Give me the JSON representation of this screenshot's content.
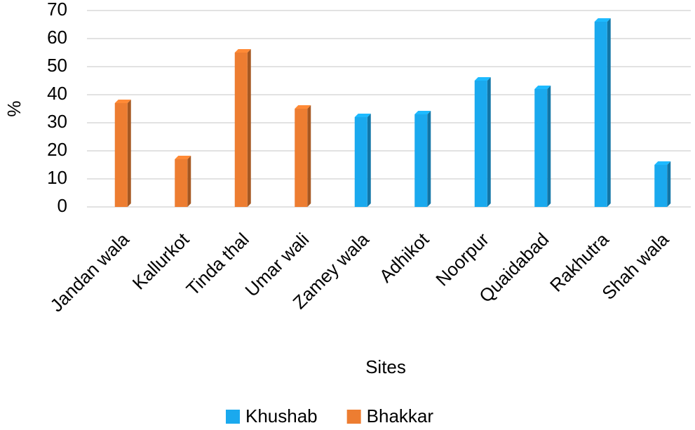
{
  "chart_data": {
    "type": "bar3d",
    "categories": [
      "Jandan wala",
      "Kallurkot",
      "Tinda thal",
      "Umar wali",
      "Zamey wala",
      "Adhikot",
      "Noorpur",
      "Quaidabad",
      "Rakhutra",
      "Shah wala"
    ],
    "series": [
      {
        "name": "Khushab",
        "color": "#1aa9ee",
        "values": [
          null,
          null,
          null,
          null,
          32,
          33,
          45,
          42,
          66,
          15
        ]
      },
      {
        "name": "Bhakkar",
        "color": "#ed7d31",
        "values": [
          37,
          17,
          55,
          35,
          null,
          null,
          null,
          null,
          null,
          null
        ]
      }
    ],
    "x_label": "Sites",
    "y_label": "%",
    "ylim": [
      0,
      70
    ],
    "yticks": [
      0,
      10,
      20,
      30,
      40,
      50,
      60,
      70
    ],
    "grid": true,
    "legend": "bottom"
  }
}
